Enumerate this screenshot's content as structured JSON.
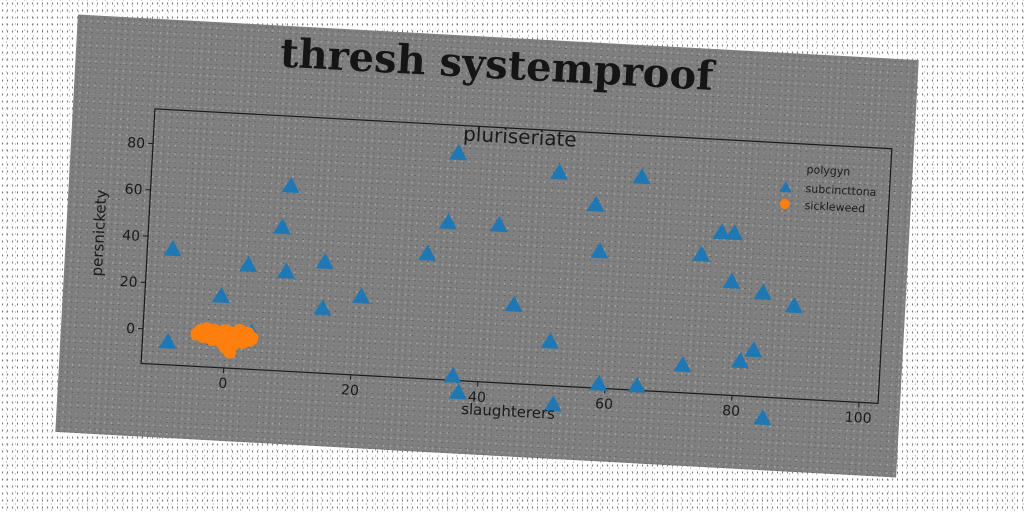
{
  "page_title": "thresh systemproof",
  "chart_data": {
    "type": "scatter",
    "title": "pluriseriate",
    "xlabel": "slaughterers",
    "ylabel": "persnickety",
    "xlim": [
      -13,
      103
    ],
    "ylim": [
      -15,
      95
    ],
    "xticks": [
      "0",
      "20",
      "40",
      "60",
      "80",
      "100"
    ],
    "yticks": [
      "0",
      "20",
      "40",
      "60",
      "80"
    ],
    "grid": false,
    "legend": {
      "title": "polygyn",
      "placement": "upper-right"
    },
    "colors": {
      "subcincttona": "#1f77b4",
      "sickleweed": "#ff7f0e"
    },
    "series": [
      {
        "name": "subcincttona",
        "marker": "triangle",
        "points": [
          [
            -9,
            35
          ],
          [
            -9,
            -5
          ],
          [
            -1,
            16
          ],
          [
            3,
            30
          ],
          [
            4,
            1
          ],
          [
            8,
            47
          ],
          [
            9,
            65
          ],
          [
            9,
            28
          ],
          [
            15,
            33
          ],
          [
            15,
            13
          ],
          [
            21,
            19
          ],
          [
            31,
            39
          ],
          [
            34,
            53
          ],
          [
            35,
            83
          ],
          [
            36,
            -13
          ],
          [
            37,
            -20
          ],
          [
            42,
            53
          ],
          [
            45,
            19
          ],
          [
            51,
            77
          ],
          [
            51,
            4
          ],
          [
            52,
            -23
          ],
          [
            57,
            64
          ],
          [
            58,
            44
          ],
          [
            59,
            -13
          ],
          [
            64,
            77
          ],
          [
            65,
            -13
          ],
          [
            72,
            -3
          ],
          [
            74,
            45
          ],
          [
            77,
            55
          ],
          [
            79,
            55
          ],
          [
            79,
            34
          ],
          [
            81,
            0
          ],
          [
            83,
            5
          ],
          [
            84,
            30
          ],
          [
            85,
            -24
          ],
          [
            89,
            25
          ]
        ]
      },
      {
        "name": "sickleweed",
        "marker": "circle",
        "points": [
          [
            -4.5,
            -1
          ],
          [
            -4,
            0.5
          ],
          [
            -3.5,
            -2
          ],
          [
            -3,
            1.5
          ],
          [
            -2.8,
            -0.5
          ],
          [
            -2.5,
            0
          ],
          [
            -2,
            -3
          ],
          [
            -1.8,
            1
          ],
          [
            -1.5,
            -1.5
          ],
          [
            -1,
            0.5
          ],
          [
            -0.5,
            -4
          ],
          [
            -0.3,
            -2
          ],
          [
            0,
            1
          ],
          [
            0,
            -6
          ],
          [
            0.3,
            -1
          ],
          [
            0.6,
            0.5
          ],
          [
            1,
            -3
          ],
          [
            1.2,
            -5
          ],
          [
            1.5,
            0
          ],
          [
            1.8,
            -2
          ],
          [
            2.2,
            1.5
          ],
          [
            2.5,
            -1
          ],
          [
            2.8,
            -3.5
          ],
          [
            3.2,
            -2
          ],
          [
            3.5,
            0.5
          ],
          [
            3.8,
            -2.5
          ],
          [
            4.2,
            -1.5
          ],
          [
            0.8,
            -8
          ]
        ]
      }
    ]
  }
}
